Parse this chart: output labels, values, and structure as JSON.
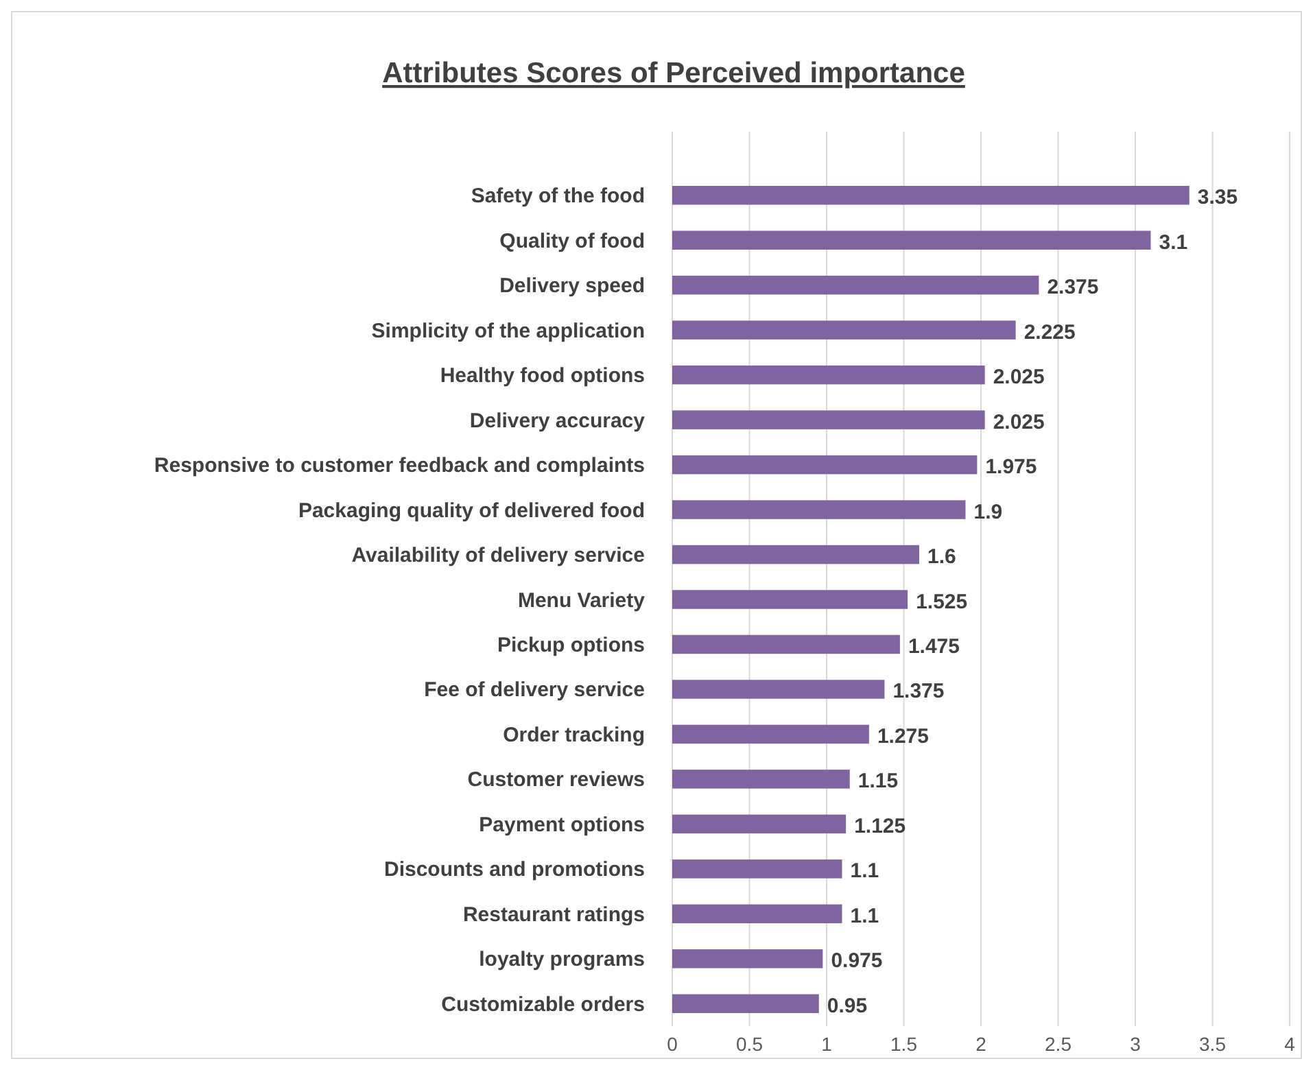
{
  "chart_data": {
    "type": "bar",
    "orientation": "horizontal",
    "title": "Attributes Scores of Perceived importance",
    "categories": [
      "Safety of the food",
      "Quality of food",
      "Delivery speed",
      "Simplicity of the application",
      "Healthy food options",
      "Delivery accuracy",
      "Responsive to customer feedback and complaints",
      "Packaging quality of delivered food",
      "Availability of delivery service",
      "Menu Variety",
      "Pickup options",
      "Fee of delivery service",
      "Order tracking",
      "Customer reviews",
      "Payment options",
      "Discounts and promotions",
      "Restaurant ratings",
      "loyalty programs",
      "Customizable orders"
    ],
    "values": [
      3.35,
      3.1,
      2.375,
      2.225,
      2.025,
      2.025,
      1.975,
      1.9,
      1.6,
      1.525,
      1.475,
      1.375,
      1.275,
      1.15,
      1.125,
      1.1,
      1.1,
      0.975,
      0.95
    ],
    "color": "#8064a2",
    "xlim": [
      0,
      4
    ],
    "xticks": [
      0,
      0.5,
      1,
      1.5,
      2,
      2.5,
      3,
      3.5,
      4
    ],
    "grid": "x",
    "data_labels": true
  }
}
